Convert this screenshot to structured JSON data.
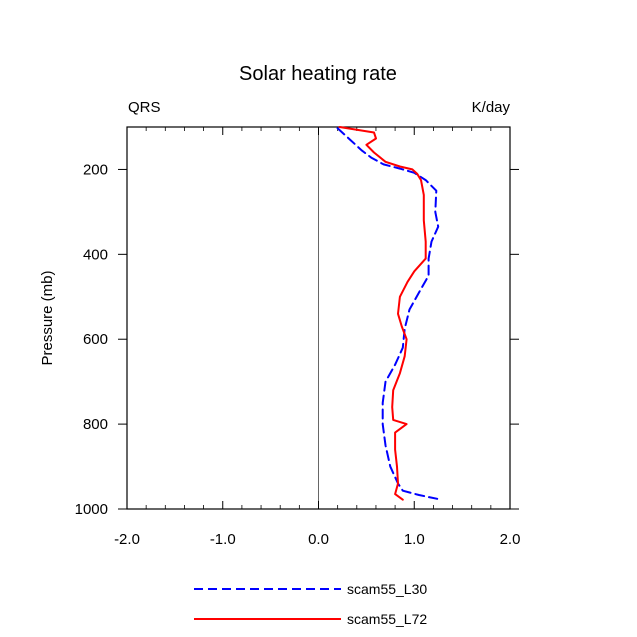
{
  "chart_data": {
    "type": "line",
    "title": "Solar heating rate",
    "left_label": "QRS",
    "right_label": "K/day",
    "xlabel": "",
    "ylabel": "Pressure (mb)",
    "xlim": [
      -2.0,
      2.0
    ],
    "ylim": [
      1000,
      100
    ],
    "y_reversed": true,
    "x_ticks": [
      -2.0,
      -1.0,
      0.0,
      1.0,
      2.0
    ],
    "x_tick_labels": [
      "-2.0",
      "-1.0",
      "0.0",
      "1.0",
      "2.0"
    ],
    "y_ticks": [
      200,
      400,
      600,
      800,
      1000
    ],
    "y_tick_labels": [
      "200",
      "400",
      "600",
      "800",
      "1000"
    ],
    "zero_line": 0.0,
    "grid": false,
    "legend_position": "bottom-center",
    "series": [
      {
        "name": "scam55_L30",
        "color": "#0000ff",
        "dash": "dashed",
        "points": [
          [
            0.2,
            103
          ],
          [
            0.33,
            130
          ],
          [
            0.45,
            155
          ],
          [
            0.55,
            172
          ],
          [
            0.68,
            188
          ],
          [
            0.85,
            198
          ],
          [
            1.0,
            208
          ],
          [
            1.12,
            225
          ],
          [
            1.23,
            250
          ],
          [
            1.22,
            300
          ],
          [
            1.25,
            335
          ],
          [
            1.18,
            370
          ],
          [
            1.15,
            410
          ],
          [
            1.15,
            450
          ],
          [
            1.05,
            490
          ],
          [
            0.95,
            530
          ],
          [
            0.9,
            575
          ],
          [
            0.88,
            620
          ],
          [
            0.8,
            660
          ],
          [
            0.7,
            700
          ],
          [
            0.67,
            750
          ],
          [
            0.67,
            800
          ],
          [
            0.7,
            850
          ],
          [
            0.75,
            900
          ],
          [
            0.83,
            940
          ],
          [
            0.88,
            957
          ],
          [
            1.05,
            967
          ],
          [
            1.24,
            976
          ]
        ]
      },
      {
        "name": "scam55_L72",
        "color": "#ff0000",
        "dash": "solid",
        "points": [
          [
            0.22,
            100
          ],
          [
            0.58,
            113
          ],
          [
            0.6,
            127
          ],
          [
            0.5,
            142
          ],
          [
            0.58,
            160
          ],
          [
            0.7,
            182
          ],
          [
            0.85,
            193
          ],
          [
            0.98,
            200
          ],
          [
            1.03,
            210
          ],
          [
            1.07,
            225
          ],
          [
            1.1,
            260
          ],
          [
            1.1,
            320
          ],
          [
            1.12,
            370
          ],
          [
            1.12,
            410
          ],
          [
            1.0,
            440
          ],
          [
            0.93,
            465
          ],
          [
            0.85,
            500
          ],
          [
            0.83,
            540
          ],
          [
            0.87,
            570
          ],
          [
            0.92,
            600
          ],
          [
            0.9,
            640
          ],
          [
            0.85,
            680
          ],
          [
            0.78,
            720
          ],
          [
            0.77,
            760
          ],
          [
            0.78,
            790
          ],
          [
            0.92,
            800
          ],
          [
            0.8,
            820
          ],
          [
            0.8,
            860
          ],
          [
            0.82,
            900
          ],
          [
            0.83,
            940
          ],
          [
            0.8,
            965
          ],
          [
            0.88,
            978
          ]
        ]
      }
    ]
  }
}
